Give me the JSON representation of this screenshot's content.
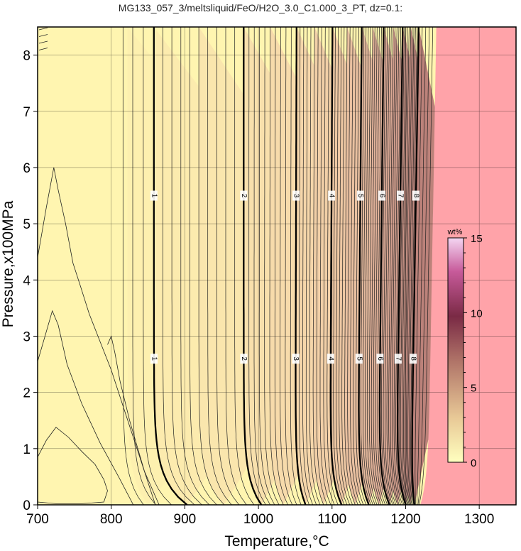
{
  "chart_data": {
    "type": "heatmap",
    "title": "MG133_057_3/meltsliquid/FeO/H2O_3.0_C1.000_3_PT, dz=0.1:",
    "xlabel": "Temperature,°C",
    "ylabel": "Pressure,x100MPa",
    "xlim": [
      700,
      1350
    ],
    "ylim": [
      0,
      8.5
    ],
    "x_ticks": [
      "700",
      "800",
      "900",
      "1000",
      "1100",
      "1200",
      "1300"
    ],
    "y_ticks": [
      "0",
      "1",
      "2",
      "3",
      "4",
      "5",
      "6",
      "7",
      "8"
    ],
    "grid": true,
    "contour_interval": 0.1,
    "major_contours": [
      {
        "level": 1,
        "label": "1",
        "T_high": 858,
        "T_low": 903
      },
      {
        "level": 2,
        "label": "2",
        "T_high": 980,
        "T_low": 1004
      },
      {
        "level": 3,
        "label": "3",
        "T_high": 1050,
        "T_low": 1064
      },
      {
        "level": 4,
        "label": "4",
        "T_high": 1097,
        "T_low": 1113
      },
      {
        "level": 5,
        "label": "5",
        "T_high": 1135,
        "T_low": 1150
      },
      {
        "level": 6,
        "label": "6",
        "T_high": 1163,
        "T_low": 1178
      },
      {
        "level": 7,
        "label": "7",
        "T_high": 1187,
        "T_low": 1200
      },
      {
        "level": 8,
        "label": "8",
        "T_high": 1207,
        "T_low": 1212
      }
    ],
    "label_pressures": [
      5.5,
      2.6
    ],
    "liquidus_T_high": 1230,
    "liquidus_T_low": 1220,
    "above_liquidus_color": "#ffa3a9",
    "colorbar": {
      "label": "wt%",
      "min": 0,
      "max": 15,
      "ticks": [
        "0",
        "5",
        "10",
        "15"
      ],
      "colors": [
        "#ffffbf",
        "#e8c896",
        "#b07468",
        "#7a2a45",
        "#c75a9a",
        "#f4d6f2"
      ]
    }
  }
}
